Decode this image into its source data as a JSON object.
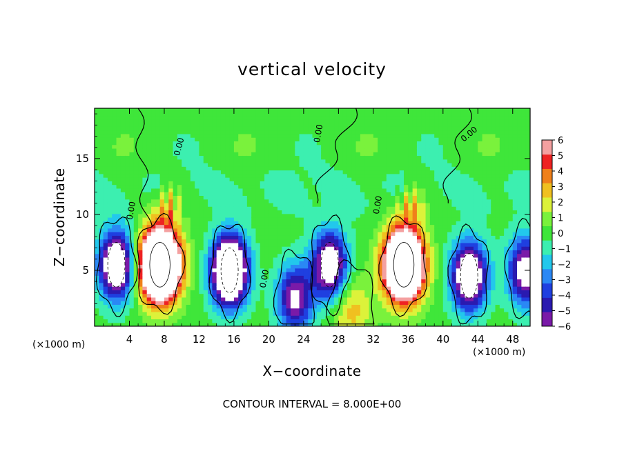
{
  "chart_data": {
    "type": "heatmap",
    "title": "vertical velocity",
    "xlabel": "X−coordinate",
    "ylabel": "Z−coordinate",
    "x_unit_note": "(×1000 m)",
    "footer": "CONTOUR INTERVAL = 8.000E+00",
    "xlim": [
      0,
      50
    ],
    "ylim": [
      0,
      19.5
    ],
    "x_ticks": [
      4,
      8,
      12,
      16,
      20,
      24,
      28,
      32,
      36,
      40,
      44,
      48
    ],
    "y_ticks": [
      5,
      10,
      15
    ],
    "contour_interval": 8,
    "zero_contour_label": "0.00",
    "colorbar": {
      "levels": [
        -6,
        -5,
        -4,
        -3,
        -2,
        -1,
        0,
        1,
        2,
        3,
        4,
        5,
        6
      ],
      "tick_labels": [
        "6",
        "5",
        "4",
        "3",
        "2",
        "1",
        "0",
        "−1",
        "−2",
        "−3",
        "−4",
        "−5",
        "−6"
      ],
      "colors": [
        "#7a1aa8",
        "#2a1ab0",
        "#1f3fe0",
        "#2a88f5",
        "#22c8ec",
        "#3cefb0",
        "#3fe63a",
        "#7af23c",
        "#dcf23a",
        "#f0c020",
        "#f0801a",
        "#ee2222",
        "#f4a0a0"
      ],
      "saturation_color": "#ffffff"
    },
    "features": [
      {
        "kind": "updraft",
        "x": 7.5,
        "z": 5.5,
        "peak": 20
      },
      {
        "kind": "downdraft",
        "x": 15.5,
        "z": 5.0,
        "peak": -14
      },
      {
        "kind": "downdraft",
        "x": 2.5,
        "z": 5.5,
        "peak": -10
      },
      {
        "kind": "downdraft",
        "x": 27.0,
        "z": 5.5,
        "peak": -9
      },
      {
        "kind": "updraft",
        "x": 35.5,
        "z": 5.5,
        "peak": 18
      },
      {
        "kind": "downdraft",
        "x": 43.0,
        "z": 4.5,
        "peak": -10
      },
      {
        "kind": "downdraft",
        "x": 49.5,
        "z": 5.0,
        "peak": -8
      },
      {
        "kind": "downdraft",
        "x": 23.0,
        "z": 2.5,
        "peak": -7
      },
      {
        "kind": "updraft",
        "x": 29.5,
        "z": 1.5,
        "peak": 3
      }
    ]
  }
}
